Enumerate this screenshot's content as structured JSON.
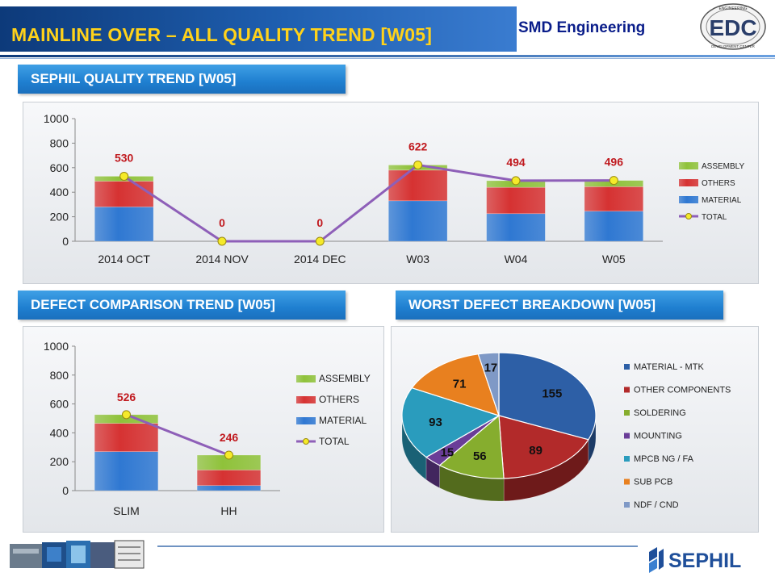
{
  "header": {
    "title": "MAINLINE OVER – ALL QUALITY TREND [W05]",
    "subtitle": "SMD Engineering",
    "logo_top": "ENGINEERING",
    "logo_bottom": "DEVELOPMENT CENTER",
    "logo_letters": "EDC"
  },
  "sections": {
    "quality": "SEPHIL QUALITY TREND [W05]",
    "defect_comparison": "DEFECT COMPARISON TREND [W05]",
    "worst_defect": "WORST DEFECT BREAKDOWN [W05]"
  },
  "footer": {
    "brand": "SEPHIL"
  },
  "colors": {
    "assembly": "#8fc23a",
    "others": "#d63232",
    "material": "#2f78d2",
    "total_line": "#8e5fb8",
    "total_marker": "#f5ea2a",
    "value_label": "#c0191e"
  },
  "chart_data": [
    {
      "type": "bar",
      "stacked": true,
      "categories": [
        "2014 OCT",
        "2014 NOV",
        "2014 DEC",
        "W03",
        "W04",
        "W05"
      ],
      "series": [
        {
          "name": "MATERIAL",
          "values": [
            280,
            0,
            0,
            330,
            225,
            245
          ]
        },
        {
          "name": "OTHERS",
          "values": [
            210,
            0,
            0,
            250,
            215,
            200
          ]
        },
        {
          "name": "ASSEMBLY",
          "values": [
            40,
            0,
            0,
            42,
            54,
            51
          ]
        }
      ],
      "line_series": {
        "name": "TOTAL",
        "values": [
          530,
          0,
          0,
          622,
          494,
          496
        ]
      },
      "data_labels": [
        "530",
        "0",
        "0",
        "622",
        "494",
        "496"
      ],
      "yticks": [
        "0",
        "200",
        "400",
        "600",
        "800",
        "1000"
      ],
      "ylim": [
        0,
        1000
      ],
      "legend_position": "right",
      "grid": false
    },
    {
      "type": "bar",
      "stacked": true,
      "categories": [
        "SLIM",
        "HH"
      ],
      "series": [
        {
          "name": "MATERIAL",
          "values": [
            270,
            35
          ]
        },
        {
          "name": "OTHERS",
          "values": [
            196,
            108
          ]
        },
        {
          "name": "ASSEMBLY",
          "values": [
            60,
            103
          ]
        }
      ],
      "line_series": {
        "name": "TOTAL",
        "values": [
          526,
          246
        ]
      },
      "data_labels": [
        "526",
        "246"
      ],
      "yticks": [
        "0",
        "200",
        "400",
        "600",
        "800",
        "1000"
      ],
      "ylim": [
        0,
        1000
      ],
      "legend_position": "right",
      "grid": false
    },
    {
      "type": "pie",
      "three_d": true,
      "legend_position": "right",
      "slices": [
        {
          "label": "MATERIAL - MTK",
          "value": 155,
          "color": "#2d5fa6"
        },
        {
          "label": "OTHER COMPONENTS",
          "value": 89,
          "color": "#b22a2a"
        },
        {
          "label": "SOLDERING",
          "value": 56,
          "color": "#86ad2e"
        },
        {
          "label": "MOUNTING",
          "value": 15,
          "color": "#6a3d98"
        },
        {
          "label": "MPCB NG / FA",
          "value": 93,
          "color": "#2a9cbd"
        },
        {
          "label": "SUB PCB",
          "value": 71,
          "color": "#e8801f"
        },
        {
          "label": "NDF / CND",
          "value": 17,
          "color": "#7f99c6"
        }
      ]
    }
  ]
}
